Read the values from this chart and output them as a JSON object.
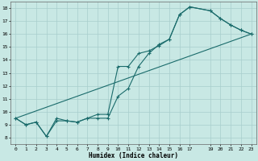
{
  "xlabel": "Humidex (Indice chaleur)",
  "xlim": [
    -0.5,
    23.5
  ],
  "ylim": [
    7.5,
    18.5
  ],
  "xticks": [
    0,
    1,
    2,
    3,
    4,
    5,
    6,
    7,
    8,
    9,
    10,
    11,
    12,
    13,
    14,
    15,
    16,
    17,
    19,
    20,
    21,
    22,
    23
  ],
  "yticks": [
    8,
    9,
    10,
    11,
    12,
    13,
    14,
    15,
    16,
    17,
    18
  ],
  "background_color": "#c8e8e4",
  "grid_color": "#a8cecc",
  "line_color": "#1a6b6b",
  "line1_x": [
    0,
    1,
    2,
    3,
    4,
    5,
    6,
    7,
    8,
    9,
    10,
    11,
    12,
    13,
    14,
    15,
    16,
    17,
    19,
    20,
    21,
    22,
    23
  ],
  "line1_y": [
    9.5,
    9.0,
    9.2,
    8.1,
    9.3,
    9.3,
    9.2,
    9.5,
    9.5,
    9.5,
    11.2,
    11.8,
    13.5,
    14.5,
    15.2,
    15.6,
    17.5,
    18.1,
    17.8,
    17.2,
    16.7,
    16.3,
    16.0
  ],
  "line2_x": [
    0,
    1,
    2,
    3,
    4,
    5,
    6,
    7,
    8,
    9,
    10,
    11,
    12,
    13,
    14,
    15,
    16,
    17,
    19,
    20,
    21,
    22,
    23
  ],
  "line2_y": [
    9.5,
    9.0,
    9.2,
    8.1,
    9.5,
    9.3,
    9.2,
    9.5,
    9.8,
    9.8,
    13.5,
    13.5,
    14.5,
    14.7,
    15.1,
    15.6,
    17.5,
    18.1,
    17.8,
    17.2,
    16.7,
    16.3,
    16.0
  ],
  "line3_x": [
    0,
    23
  ],
  "line3_y": [
    9.5,
    16.0
  ]
}
